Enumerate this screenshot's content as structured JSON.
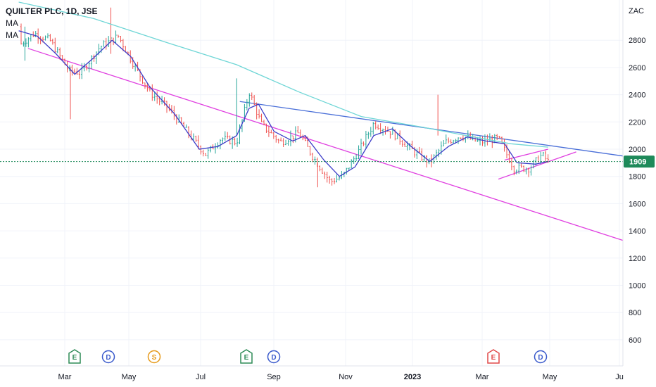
{
  "chart_data": {
    "type": "candlestick",
    "symbol_line": "QUILTER PLC, 1D, JSE",
    "indicators": [
      "MA",
      "MA"
    ],
    "currency_label": "ZAC",
    "last_price": "1909",
    "y_ticks": [
      600,
      800,
      1000,
      1200,
      1400,
      1600,
      1800,
      2000,
      2200,
      2400,
      2600,
      2800
    ],
    "x_ticks": [
      {
        "label": "Mar",
        "bold": false
      },
      {
        "label": "May",
        "bold": false
      },
      {
        "label": "Jul",
        "bold": false
      },
      {
        "label": "Sep",
        "bold": false
      },
      {
        "label": "Nov",
        "bold": false
      },
      {
        "label": "2023",
        "bold": true
      },
      {
        "label": "Mar",
        "bold": false
      },
      {
        "label": "May",
        "bold": false
      },
      {
        "label": "Ju",
        "bold": false
      }
    ],
    "events": [
      {
        "kind": "E",
        "month": "Mar 2022"
      },
      {
        "kind": "D",
        "month": "Apr 2022"
      },
      {
        "kind": "S",
        "month": "May 2022"
      },
      {
        "kind": "E",
        "month": "Aug 2022"
      },
      {
        "kind": "D",
        "month": "Aug 2022"
      },
      {
        "kind": "E",
        "month": "Mar 2023"
      },
      {
        "kind": "D",
        "month": "Apr 2023"
      }
    ],
    "price_path": [
      [
        0,
        2900
      ],
      [
        0.03,
        2760
      ],
      [
        0.055,
        2850
      ],
      [
        0.08,
        2800
      ],
      [
        0.11,
        2580
      ],
      [
        0.13,
        2560
      ],
      [
        0.16,
        2750
      ],
      [
        0.19,
        2830
      ],
      [
        0.215,
        2620
      ],
      [
        0.24,
        2420
      ],
      [
        0.27,
        2300
      ],
      [
        0.3,
        2130
      ],
      [
        0.33,
        1960
      ],
      [
        0.355,
        2080
      ],
      [
        0.38,
        2050
      ],
      [
        0.4,
        2420
      ],
      [
        0.42,
        2180
      ],
      [
        0.45,
        2050
      ],
      [
        0.48,
        2120
      ],
      [
        0.5,
        1960
      ],
      [
        0.53,
        1760
      ],
      [
        0.55,
        1800
      ],
      [
        0.575,
        1980
      ],
      [
        0.6,
        2190
      ],
      [
        0.63,
        2120
      ],
      [
        0.665,
        1980
      ],
      [
        0.69,
        1900
      ],
      [
        0.715,
        2050
      ],
      [
        0.74,
        2100
      ],
      [
        0.77,
        2050
      ],
      [
        0.8,
        2080
      ],
      [
        0.825,
        1860
      ],
      [
        0.85,
        1860
      ],
      [
        0.87,
        1960
      ],
      [
        0.88,
        1910
      ]
    ],
    "ma_fast": [
      [
        0.03,
        2870
      ],
      [
        0.06,
        2830
      ],
      [
        0.09,
        2700
      ],
      [
        0.12,
        2550
      ],
      [
        0.15,
        2670
      ],
      [
        0.18,
        2800
      ],
      [
        0.21,
        2680
      ],
      [
        0.24,
        2460
      ],
      [
        0.28,
        2260
      ],
      [
        0.32,
        2000
      ],
      [
        0.35,
        2020
      ],
      [
        0.38,
        2100
      ],
      [
        0.4,
        2300
      ],
      [
        0.415,
        2330
      ],
      [
        0.44,
        2130
      ],
      [
        0.47,
        2060
      ],
      [
        0.49,
        2100
      ],
      [
        0.52,
        1920
      ],
      [
        0.545,
        1800
      ],
      [
        0.57,
        1870
      ],
      [
        0.6,
        2100
      ],
      [
        0.63,
        2150
      ],
      [
        0.66,
        2020
      ],
      [
        0.69,
        1910
      ],
      [
        0.72,
        2020
      ],
      [
        0.75,
        2090
      ],
      [
        0.78,
        2060
      ],
      [
        0.81,
        2040
      ],
      [
        0.83,
        1900
      ],
      [
        0.86,
        1890
      ],
      [
        0.88,
        1910
      ]
    ],
    "ma_slow": [
      [
        0.03,
        3080
      ],
      [
        0.15,
        2960
      ],
      [
        0.27,
        2780
      ],
      [
        0.38,
        2620
      ],
      [
        0.48,
        2420
      ],
      [
        0.58,
        2240
      ],
      [
        0.68,
        2160
      ],
      [
        0.76,
        2090
      ],
      [
        0.82,
        2040
      ],
      [
        0.88,
        2015
      ]
    ],
    "trendlines": [
      {
        "color": "#e040e0",
        "from": [
          0.045,
          2740
        ],
        "to": [
          1.0,
          1330
        ]
      },
      {
        "color": "#4a6fd8",
        "from": [
          0.385,
          2350
        ],
        "to": [
          1.0,
          1950
        ]
      },
      {
        "color": "#e040e0",
        "from": [
          0.81,
          1920
        ],
        "to": [
          0.88,
          2000
        ]
      },
      {
        "color": "#e040e0",
        "from": [
          0.8,
          1780
        ],
        "to": [
          0.925,
          1980
        ]
      }
    ],
    "colors": {
      "up": "#26a69a",
      "down": "#ef5350",
      "ma_fast": "#3c3cc8",
      "ma_slow": "#6fd6d6",
      "last_price": "#1e8a5a"
    }
  }
}
